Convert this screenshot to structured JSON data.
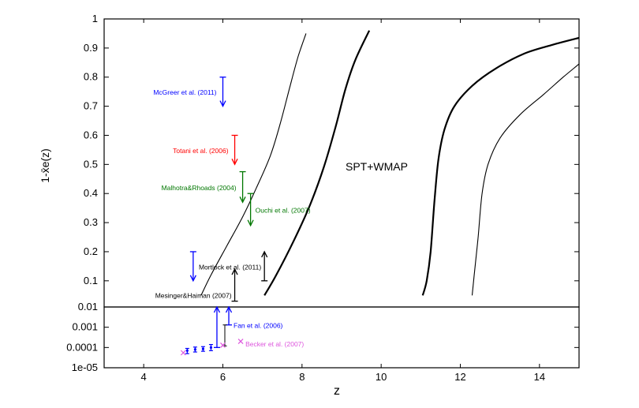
{
  "chart_data": {
    "type": "line",
    "xlabel": "z",
    "ylabel": "1-x̄e(z)",
    "xlim": [
      3,
      15
    ],
    "xticks": [
      "4",
      "6",
      "8",
      "10",
      "12",
      "14"
    ],
    "panels": {
      "upper": {
        "scale": "linear",
        "ylim": [
          0.01,
          1.0
        ],
        "yticks": [
          "0.01",
          "0.1",
          "0.2",
          "0.3",
          "0.4",
          "0.5",
          "0.6",
          "0.7",
          "0.8",
          "0.9",
          "1"
        ]
      },
      "lower": {
        "scale": "log",
        "ylim": [
          1e-05,
          0.01
        ],
        "yticks": [
          "1e-05",
          "0.0001",
          "0.001",
          "0.01"
        ]
      }
    },
    "annotation": "SPT+WMAP",
    "series": [
      {
        "style": "thin",
        "points": [
          [
            5.45,
            0.05
          ],
          [
            5.7,
            0.12
          ],
          [
            6.1,
            0.22
          ],
          [
            6.5,
            0.32
          ],
          [
            6.85,
            0.42
          ],
          [
            7.2,
            0.53
          ],
          [
            7.45,
            0.64
          ],
          [
            7.7,
            0.77
          ],
          [
            7.9,
            0.87
          ],
          [
            8.1,
            0.95
          ]
        ]
      },
      {
        "style": "thick",
        "points": [
          [
            7.05,
            0.05
          ],
          [
            7.35,
            0.12
          ],
          [
            7.8,
            0.24
          ],
          [
            8.2,
            0.36
          ],
          [
            8.55,
            0.49
          ],
          [
            8.85,
            0.63
          ],
          [
            9.1,
            0.76
          ],
          [
            9.35,
            0.86
          ],
          [
            9.7,
            0.96
          ]
        ]
      },
      {
        "style": "thick",
        "points": [
          [
            11.05,
            0.05
          ],
          [
            11.15,
            0.1
          ],
          [
            11.25,
            0.2
          ],
          [
            11.35,
            0.38
          ],
          [
            11.45,
            0.52
          ],
          [
            11.6,
            0.62
          ],
          [
            11.85,
            0.7
          ],
          [
            12.3,
            0.77
          ],
          [
            12.9,
            0.83
          ],
          [
            13.6,
            0.88
          ],
          [
            14.3,
            0.91
          ],
          [
            15.0,
            0.935
          ]
        ]
      },
      {
        "style": "thin",
        "points": [
          [
            12.3,
            0.05
          ],
          [
            12.35,
            0.12
          ],
          [
            12.45,
            0.25
          ],
          [
            12.55,
            0.4
          ],
          [
            12.7,
            0.5
          ],
          [
            13.0,
            0.59
          ],
          [
            13.5,
            0.67
          ],
          [
            14.1,
            0.74
          ],
          [
            14.6,
            0.8
          ],
          [
            15.0,
            0.845
          ]
        ]
      }
    ],
    "constraints": [
      {
        "label": "McGreer et al. (2011)",
        "color": "#0000ff",
        "x": 6.0,
        "y_from": 0.8,
        "y_to": 0.7
      },
      {
        "label": "Totani et al. (2006)",
        "color": "#ff0000",
        "x": 6.3,
        "y_from": 0.6,
        "y_to": 0.5
      },
      {
        "label": "Malhotra&Rhoads (2004)",
        "color": "#007700",
        "x": 6.5,
        "y_from": 0.475,
        "y_to": 0.37
      },
      {
        "label": "Ouchi et al. (2007)",
        "color": "#007700",
        "x": 6.7,
        "y_from": 0.4,
        "y_to": 0.29
      },
      {
        "label": "",
        "color": "#0000ff",
        "x": 5.25,
        "y_from": 0.2,
        "y_to": 0.1
      },
      {
        "label": "Mortlock et al. (2011)",
        "color": "#000000",
        "x": 7.05,
        "y_from": 0.1,
        "y_to": 0.2
      },
      {
        "label": "Mesinger&Haiman (2007)",
        "color": "#000000",
        "x": 6.3,
        "y_from": 0.03,
        "y_to": 0.14
      }
    ],
    "fan_points": {
      "label": "Fan et al. (2006)",
      "color": "#0000ff",
      "points": [
        {
          "x": 5.1,
          "y": 7e-05,
          "lo": 5e-05,
          "hi": 9e-05
        },
        {
          "x": 5.3,
          "y": 8e-05,
          "lo": 6e-05,
          "hi": 0.000105
        },
        {
          "x": 5.5,
          "y": 8.5e-05,
          "lo": 6.5e-05,
          "hi": 0.00011
        },
        {
          "x": 5.7,
          "y": 0.0001,
          "lo": 7e-05,
          "hi": 0.00014
        }
      ],
      "arrows": [
        {
          "x": 5.85,
          "y_from": 0.0001,
          "y_to": 0.01
        },
        {
          "x": 6.15,
          "y_from": 0.0013,
          "y_to": 0.01
        }
      ],
      "extra_bar": {
        "x": 6.05,
        "lo": 0.00012,
        "hi": 0.0013
      }
    },
    "becker_points": {
      "label": "Becker et al. (2007)",
      "color": "#dd55dd",
      "points": [
        {
          "x": 5.0,
          "y": 5.5e-05
        },
        {
          "x": 6.0,
          "y": 0.00013
        },
        {
          "x": 6.45,
          "y": 0.0002
        }
      ]
    }
  }
}
